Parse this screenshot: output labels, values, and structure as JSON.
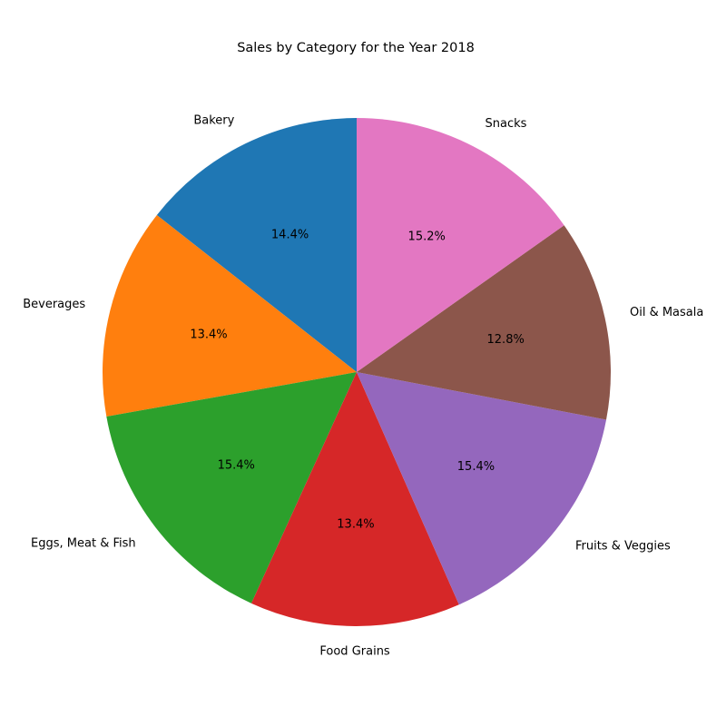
{
  "chart_data": {
    "type": "pie",
    "title": "Sales by Category for the Year 2018",
    "start_angle_deg": 90,
    "direction": "counterclockwise",
    "slices": [
      {
        "label": "Bakery",
        "percent": 14.4,
        "percent_label": "14.4%",
        "color": "#1f77b4"
      },
      {
        "label": "Beverages",
        "percent": 13.4,
        "percent_label": "13.4%",
        "color": "#ff7f0e"
      },
      {
        "label": "Eggs, Meat & Fish",
        "percent": 15.4,
        "percent_label": "15.4%",
        "color": "#2ca02c"
      },
      {
        "label": "Food Grains",
        "percent": 13.4,
        "percent_label": "13.4%",
        "color": "#d62728"
      },
      {
        "label": "Fruits & Veggies",
        "percent": 15.4,
        "percent_label": "15.4%",
        "color": "#9467bd"
      },
      {
        "label": "Oil & Masala",
        "percent": 12.8,
        "percent_label": "12.8%",
        "color": "#8c564b"
      },
      {
        "label": "Snacks",
        "percent": 15.2,
        "percent_label": "15.2%",
        "color": "#e377c2"
      }
    ]
  }
}
